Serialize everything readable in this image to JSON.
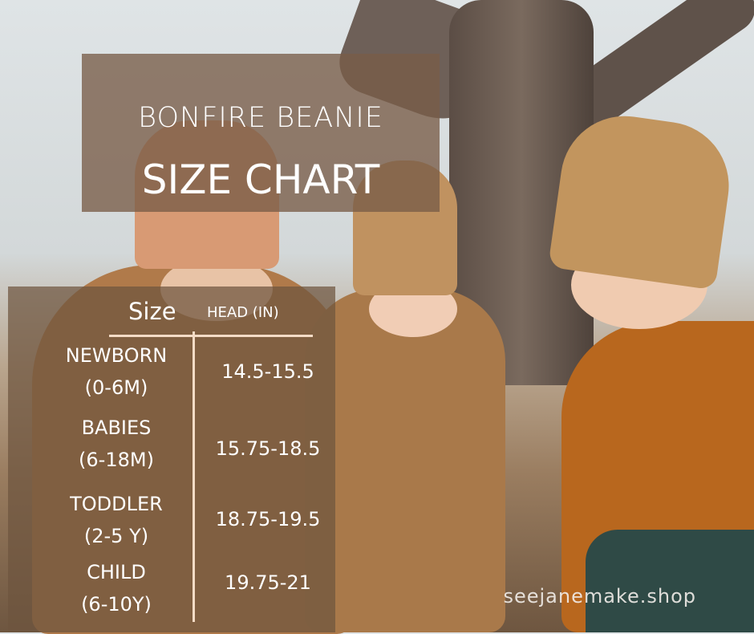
{
  "title": {
    "line1": "BONFIRE BEANIE",
    "line2": "SIZE CHART"
  },
  "table": {
    "headers": {
      "size": "Size",
      "head": "HEAD (IN)"
    },
    "rows": [
      {
        "size": "NEWBORN",
        "range": "(0-6M)",
        "head": "14.5-15.5"
      },
      {
        "size": "BABIES",
        "range": "(6-18M)",
        "head": "15.75-18.5"
      },
      {
        "size": "TODDLER",
        "range": "(2-5 Y)",
        "head": "18.75-19.5"
      },
      {
        "size": "CHILD",
        "range": "(6-10Y)",
        "head": "19.75-21"
      }
    ]
  },
  "watermark": "seejanemake.shop",
  "colors": {
    "panel": "#785c48",
    "line": "#f5dcc6",
    "text": "#ffffff"
  }
}
